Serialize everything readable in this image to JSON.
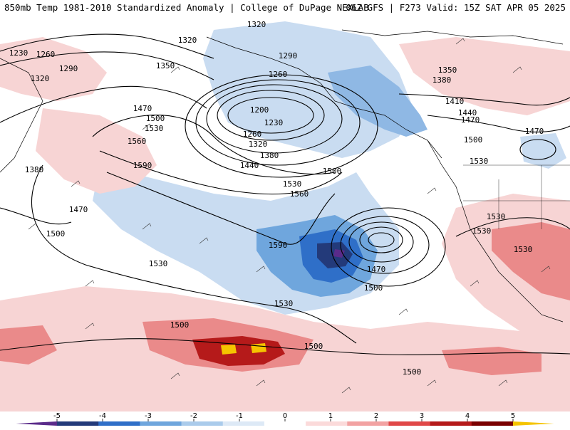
{
  "header": {
    "title_left": "850mb Temp 1981-2010 Standardized Anomaly | College of DuPage NEXLAB",
    "title_right": "06Z GFS | F273 Valid: 15Z SAT APR 05 2025"
  },
  "contour_labels": [
    "1320",
    "1230",
    "1260",
    "1290",
    "1320",
    "1350",
    "1320",
    "1290",
    "1260",
    "1200",
    "1230",
    "1260",
    "1320",
    "1380",
    "1440",
    "1500",
    "1530",
    "1560",
    "1590",
    "1470",
    "1500",
    "1530",
    "1560",
    "1590",
    "1350",
    "1380",
    "1410",
    "1440",
    "1470",
    "1470",
    "1500",
    "1530",
    "1530",
    "1530",
    "1530",
    "1470",
    "1500",
    "1380",
    "1470",
    "1500",
    "1530",
    "1530",
    "1500",
    "1500",
    "1500"
  ],
  "colorbar": {
    "ticks": [
      "-5",
      "-4",
      "-3",
      "-2",
      "-1",
      "0",
      "1",
      "2",
      "3",
      "4",
      "5"
    ],
    "colors": [
      "#5a2b8a",
      "#233a7a",
      "#2f6fc8",
      "#6fa6dd",
      "#aacbeb",
      "#dde9f6",
      "#ffffff",
      "#fbdada",
      "#f2a2a2",
      "#e04848",
      "#b51a1a",
      "#7a0000",
      "#f5c400"
    ]
  },
  "colors": {
    "cold_strong": "#2f6fc8",
    "cold_mid": "#6fa6dd",
    "cold_light": "#c9dcf1",
    "warm_light": "#f7d4d4",
    "warm_mid": "#ea8a8a",
    "warm_strong": "#b51a1a",
    "warm_max": "#f5c400"
  }
}
